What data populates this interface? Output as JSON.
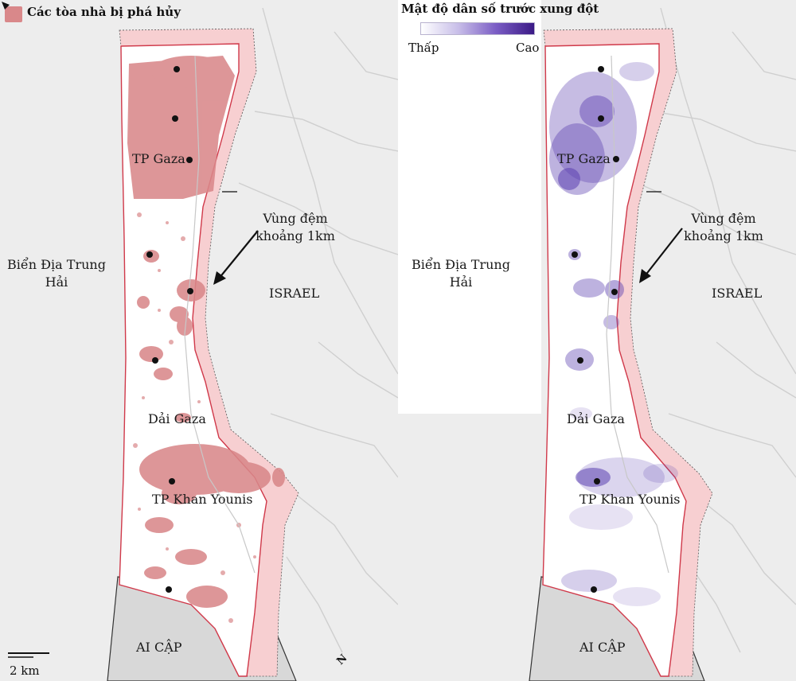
{
  "legend": {
    "destroyed_title": "Các tòa nhà bị phá hủy",
    "density_title": "Mật độ dân số trước xung đột",
    "density_low": "Thấp",
    "density_high": "Cao"
  },
  "labels": {
    "sea": "Biển Địa Trung Hải",
    "buffer_zone": "Vùng đệm khoảng 1km",
    "israel": "ISRAEL",
    "egypt": "AI CẬP",
    "gaza_strip": "Dải Gaza",
    "gaza_city": "TP Gaza",
    "khan_younis": "TP  Khan Younis"
  },
  "scale": {
    "label": "2 km"
  },
  "north": {
    "label": "N"
  },
  "colors": {
    "destroyed": "#d9888a",
    "density": "#5b3fb0",
    "buffer_fill": "#f7cfd1",
    "buffer_border": "#d0394a",
    "land": "#ededed",
    "road": "#c8c8c8"
  }
}
